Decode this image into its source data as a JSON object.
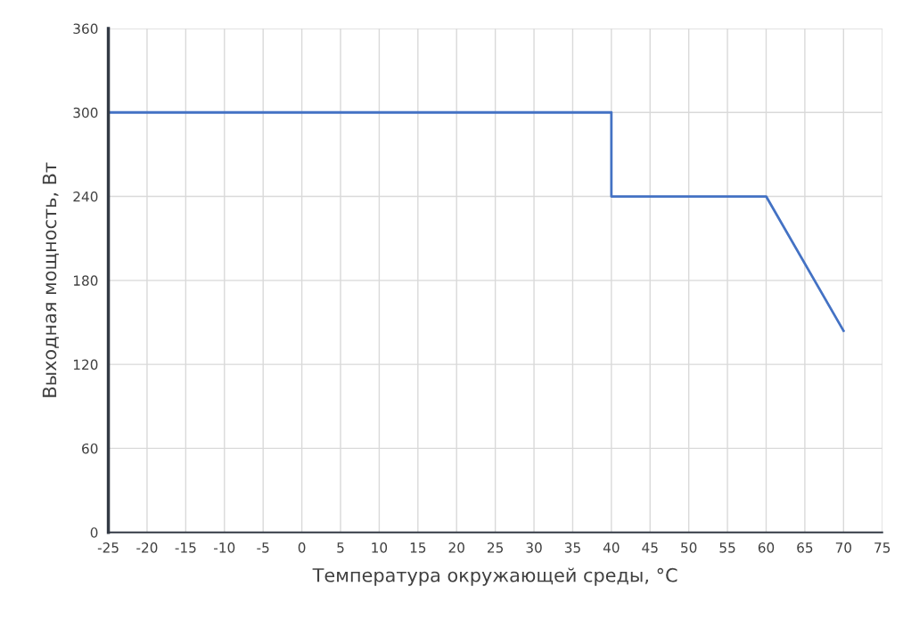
{
  "chart_data": {
    "type": "line",
    "xlabel": "Температура окружающей среды, °C",
    "ylabel": "Выходная мощность, Вт",
    "x": [
      -25,
      40,
      40,
      60,
      70
    ],
    "series": [
      {
        "color": "#4472c4",
        "values": [
          300,
          300,
          240,
          240,
          144
        ]
      }
    ],
    "xlim": [
      -25,
      75
    ],
    "xticks": [
      -25,
      -20,
      -15,
      -10,
      -5,
      0,
      5,
      10,
      15,
      20,
      25,
      30,
      35,
      40,
      45,
      50,
      55,
      60,
      65,
      70,
      75
    ],
    "ylim": [
      0,
      360
    ],
    "yticks": [
      0,
      60,
      120,
      180,
      240,
      300,
      360
    ],
    "grid": true,
    "legend": false,
    "marker": "none",
    "line_style": "solid"
  }
}
